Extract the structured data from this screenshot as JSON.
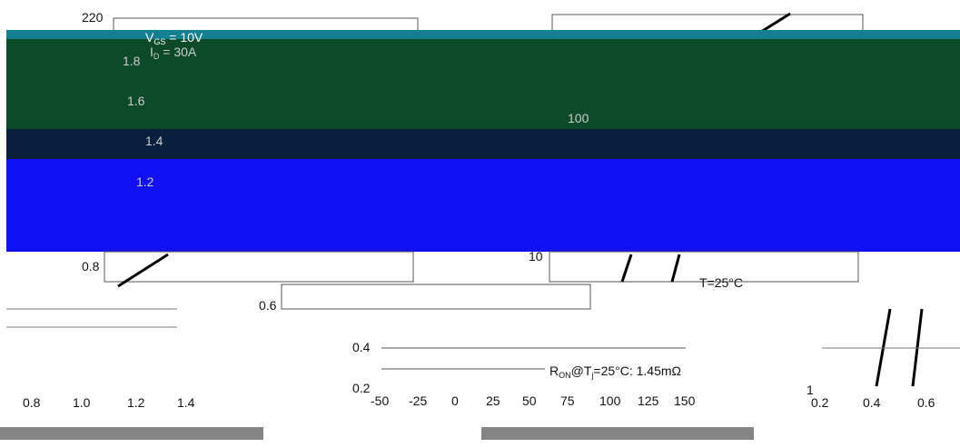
{
  "left_chart": {
    "y_ticks": [
      "1.8",
      "1.6",
      "1.4",
      "1.2",
      "0.8"
    ],
    "x_ticks": [
      "0.8",
      "1.0",
      "1.2",
      "1.4"
    ],
    "top_label": "220",
    "vgs": {
      "v": "V",
      "sub": "GS",
      "rest": " = 10V"
    },
    "id": {
      "v": "I",
      "sub": "D",
      "rest": " = 30A"
    }
  },
  "middle_chart": {
    "y_ticks": [
      "0.6",
      "0.4",
      "0.2"
    ],
    "x_ticks": [
      "-50",
      "-25",
      "0",
      "25",
      "50",
      "75",
      "100",
      "125",
      "150"
    ],
    "ron": {
      "a": "R",
      "sub1": "ON",
      "b": "@T",
      "sub2": "j",
      "c": "=25°C: 1.45mΩ"
    }
  },
  "right_chart": {
    "y_ticks": [
      "100",
      "10",
      "1"
    ],
    "x_ticks": [
      "0.2",
      "0.4",
      "0.6"
    ],
    "tj": "T=25°C"
  }
}
